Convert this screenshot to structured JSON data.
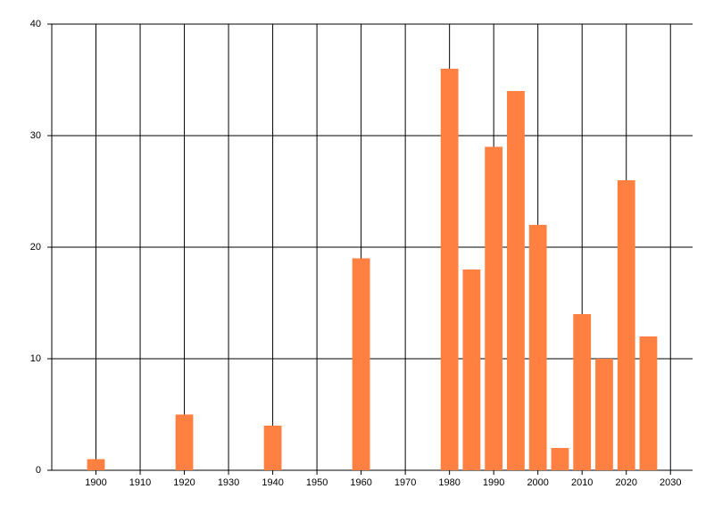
{
  "chart_data": {
    "type": "bar",
    "x": [
      1900,
      1920,
      1940,
      1960,
      1980,
      1985,
      1990,
      1995,
      2000,
      2005,
      2010,
      2015,
      2020,
      2025
    ],
    "values": [
      1,
      5,
      4,
      19,
      36,
      18,
      29,
      34,
      22,
      2,
      14,
      10,
      26,
      12
    ],
    "color": "#ff8040",
    "xlim": [
      1890,
      2035
    ],
    "xticks": [
      1900,
      1910,
      1920,
      1930,
      1940,
      1950,
      1960,
      1970,
      1980,
      1990,
      2000,
      2010,
      2020,
      2030
    ],
    "ylim": [
      0,
      40
    ],
    "yticks": [
      0,
      10,
      20,
      30,
      40
    ],
    "grid": true
  }
}
